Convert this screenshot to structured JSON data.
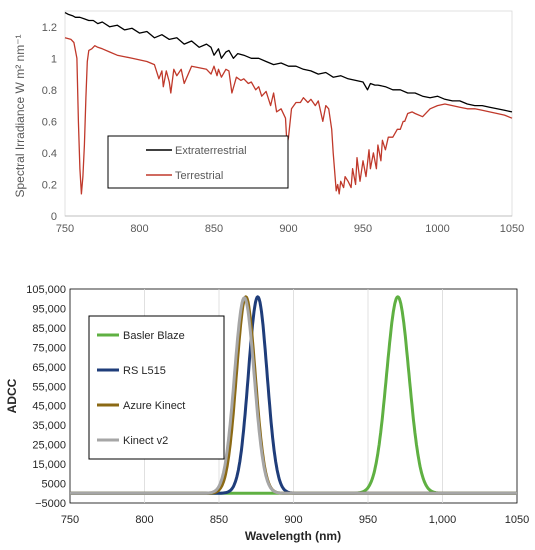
{
  "chart_data": [
    {
      "type": "line",
      "title": "",
      "xlabel": "",
      "ylabel": "Spectral Irradiance W m² nm⁻¹",
      "xlim": [
        750,
        1050
      ],
      "ylim": [
        0,
        1.3
      ],
      "xticks": [
        "750",
        "800",
        "850",
        "900",
        "950",
        "1000",
        "1050"
      ],
      "yticks": [
        "0",
        "0.2",
        "0.4",
        "0.6",
        "0.8",
        "1",
        "1.2"
      ],
      "grid": false,
      "legend": "center-left",
      "series": [
        {
          "name": "Extraterrestrial",
          "color": "#000000",
          "x": [
            750,
            752,
            755,
            757,
            760,
            763,
            766,
            769,
            772,
            775,
            780,
            785,
            790,
            795,
            800,
            805,
            810,
            815,
            820,
            825,
            830,
            835,
            840,
            845,
            848,
            850,
            853,
            855,
            858,
            860,
            863,
            866,
            870,
            875,
            880,
            885,
            890,
            895,
            900,
            905,
            910,
            915,
            920,
            925,
            930,
            935,
            940,
            945,
            950,
            953,
            955,
            958,
            960,
            965,
            970,
            975,
            980,
            985,
            990,
            995,
            1000,
            1005,
            1010,
            1015,
            1020,
            1025,
            1030,
            1035,
            1040,
            1045,
            1050
          ],
          "y": [
            1.29,
            1.28,
            1.27,
            1.26,
            1.26,
            1.25,
            1.24,
            1.24,
            1.22,
            1.23,
            1.2,
            1.21,
            1.18,
            1.19,
            1.16,
            1.17,
            1.13,
            1.15,
            1.12,
            1.13,
            1.09,
            1.11,
            1.07,
            1.09,
            1.07,
            1.02,
            1.06,
            1.0,
            1.04,
            1.05,
            1.0,
            1.03,
            1.02,
            1.0,
            1.0,
            0.98,
            0.96,
            0.97,
            0.95,
            0.95,
            0.93,
            0.92,
            0.9,
            0.91,
            0.88,
            0.89,
            0.87,
            0.86,
            0.85,
            0.8,
            0.84,
            0.83,
            0.83,
            0.82,
            0.8,
            0.8,
            0.78,
            0.78,
            0.76,
            0.75,
            0.76,
            0.74,
            0.73,
            0.73,
            0.71,
            0.7,
            0.7,
            0.69,
            0.68,
            0.67,
            0.66
          ]
        },
        {
          "name": "Terrestrial",
          "color": "#c0392b",
          "x": [
            750,
            754,
            756,
            758,
            759,
            760,
            761,
            762,
            763,
            764,
            765,
            766,
            768,
            770,
            772,
            775,
            780,
            785,
            790,
            795,
            800,
            805,
            810,
            813,
            815,
            816,
            818,
            820,
            821,
            823,
            825,
            828,
            830,
            835,
            840,
            845,
            848,
            850,
            852,
            853,
            855,
            858,
            860,
            862,
            865,
            868,
            870,
            873,
            875,
            878,
            880,
            882,
            885,
            888,
            890,
            892,
            895,
            898,
            899,
            900,
            902,
            905,
            908,
            910,
            913,
            915,
            918,
            920,
            923,
            925,
            927,
            929,
            930,
            931,
            932,
            933,
            934,
            935,
            937,
            938,
            940,
            942,
            943,
            945,
            946,
            948,
            950,
            952,
            954,
            955,
            957,
            959,
            960,
            962,
            963,
            965,
            967,
            970,
            973,
            975,
            977,
            978,
            980,
            983,
            985,
            990,
            995,
            1000,
            1005,
            1010,
            1015,
            1020,
            1025,
            1030,
            1035,
            1040,
            1045,
            1050
          ],
          "y": [
            1.13,
            1.12,
            1.1,
            1.0,
            0.6,
            0.3,
            0.14,
            0.25,
            0.45,
            0.75,
            0.98,
            1.05,
            1.06,
            1.08,
            1.07,
            1.06,
            1.04,
            1.02,
            1.01,
            1.0,
            0.99,
            0.98,
            0.96,
            0.87,
            0.92,
            0.82,
            0.92,
            0.85,
            0.78,
            0.93,
            0.89,
            0.93,
            0.84,
            0.95,
            0.94,
            0.93,
            0.9,
            0.95,
            0.89,
            0.93,
            0.88,
            0.93,
            0.92,
            0.78,
            0.88,
            0.86,
            0.87,
            0.84,
            0.85,
            0.8,
            0.82,
            0.76,
            0.79,
            0.7,
            0.78,
            0.66,
            0.68,
            0.62,
            0.45,
            0.5,
            0.68,
            0.72,
            0.72,
            0.75,
            0.72,
            0.74,
            0.7,
            0.73,
            0.6,
            0.7,
            0.68,
            0.55,
            0.4,
            0.28,
            0.16,
            0.2,
            0.14,
            0.22,
            0.18,
            0.25,
            0.22,
            0.18,
            0.3,
            0.2,
            0.37,
            0.22,
            0.35,
            0.25,
            0.42,
            0.3,
            0.4,
            0.3,
            0.45,
            0.35,
            0.48,
            0.42,
            0.5,
            0.5,
            0.55,
            0.55,
            0.6,
            0.6,
            0.65,
            0.66,
            0.65,
            0.63,
            0.68,
            0.7,
            0.71,
            0.7,
            0.69,
            0.68,
            0.68,
            0.67,
            0.66,
            0.65,
            0.64,
            0.62
          ]
        }
      ]
    },
    {
      "type": "line",
      "title": "",
      "xlabel": "Wavelength (nm)",
      "ylabel": "ADCC",
      "xlim": [
        750,
        1050
      ],
      "ylim": [
        -5000,
        105000
      ],
      "xticks": [
        "750",
        "800",
        "850",
        "900",
        "950",
        "1,000",
        "1050"
      ],
      "yticks": [
        "−5000",
        "5000",
        "15,000",
        "25,000",
        "35,000",
        "45,000",
        "55,000",
        "65,000",
        "75,000",
        "85,000",
        "95,000",
        "105,000"
      ],
      "grid": true,
      "legend": "left",
      "series": [
        {
          "name": "Basler Blaze",
          "color": "#5fb042",
          "center": 970,
          "sigma": 7.5,
          "peak": 101000
        },
        {
          "name": "RS L515",
          "color": "#1f3d7a",
          "center": 876,
          "sigma": 6.3,
          "peak": 101000
        },
        {
          "name": "Azure Kinect",
          "color": "#8b6914",
          "center": 868,
          "sigma": 6.3,
          "peak": 101000
        },
        {
          "name": "Kinect v2",
          "color": "#a6a6a6",
          "center": 867,
          "sigma": 6.6,
          "peak": 100500
        }
      ]
    }
  ]
}
